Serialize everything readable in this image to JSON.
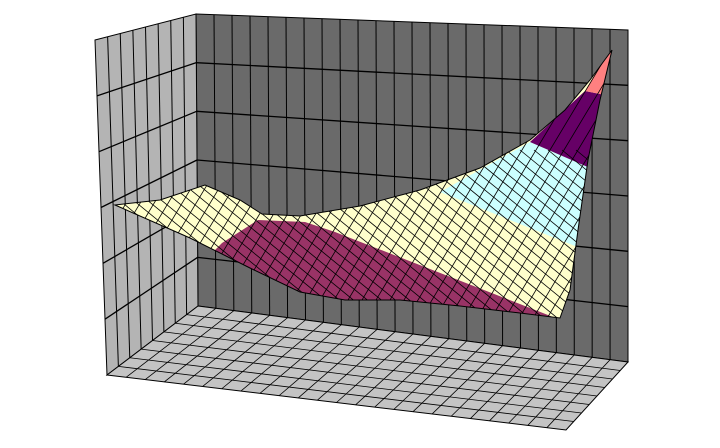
{
  "chart_data": {
    "type": "surface",
    "title": "",
    "xlabel": "",
    "ylabel": "",
    "zlabel": "",
    "legend": "none",
    "grid": true,
    "walls": {
      "back": "#6a6a6a",
      "side": "#b4b4b4",
      "floor": "#c4c4c4",
      "gridline": "#000000"
    },
    "band_colors": [
      "#993366",
      "#ffffcc",
      "#ccffff",
      "#660066",
      "#ff8080"
    ]
  }
}
